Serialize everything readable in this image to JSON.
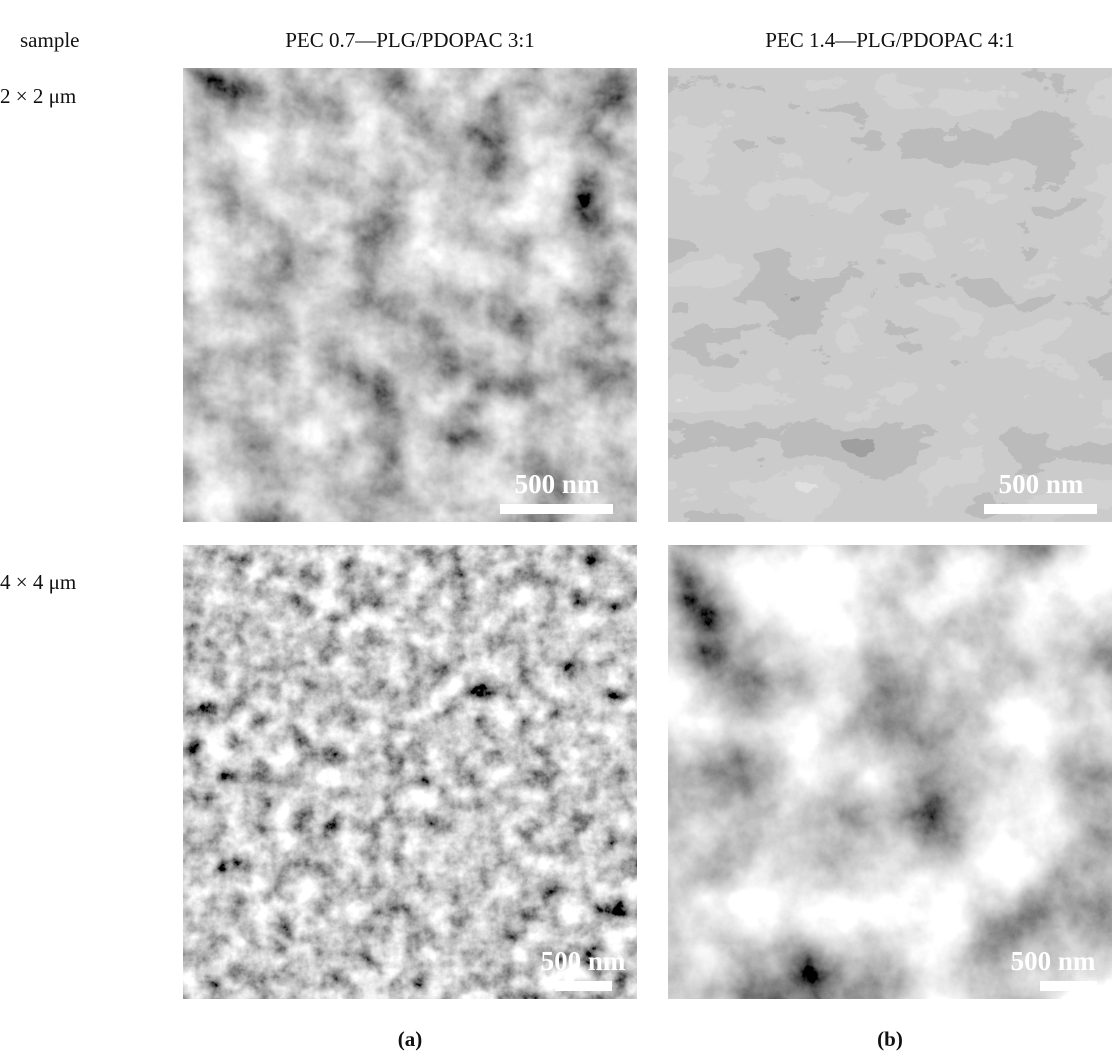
{
  "header": {
    "corner": "sample",
    "columns": [
      "PEC 0.7—PLG/PDOPAC 3:1",
      "PEC 1.4—PLG/PDOPAC 4:1"
    ]
  },
  "rows": [
    {
      "label": "2 × 2 μm",
      "scale_bars": [
        "500 nm",
        "500 nm"
      ]
    },
    {
      "label": "4 × 4 μm",
      "scale_bars": [
        "500 nm",
        "500 nm"
      ]
    }
  ],
  "captions": [
    "(a)",
    "(b)"
  ]
}
